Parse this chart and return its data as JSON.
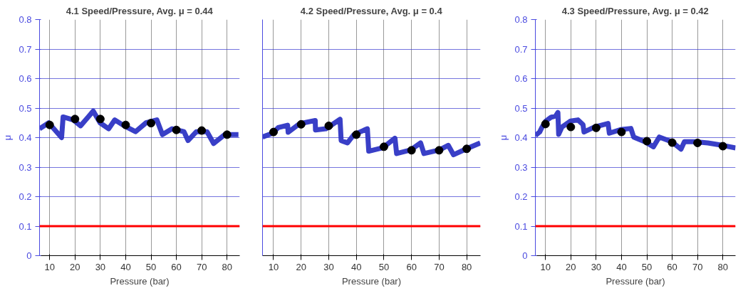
{
  "chart_data": [
    {
      "type": "line",
      "title": "4.1 Speed/Pressure, Avg. μ = 0.44",
      "xlabel": "Pressure (bar)",
      "ylabel": "μ",
      "xlim": [
        6,
        85
      ],
      "xticks": [
        10,
        20,
        30,
        40,
        50,
        60,
        70,
        80
      ],
      "ylim": [
        0,
        0.8
      ],
      "yticks": [
        0,
        0.1,
        0.2,
        0.3,
        0.4,
        0.5,
        0.6,
        0.7,
        0.8
      ],
      "grid": true,
      "series": [
        {
          "color": "#2e35c4",
          "x": [
            6.0,
            9.6,
            14.7,
            15.3,
            19.3,
            22.2,
            25.2,
            27.2,
            29.9,
            33.3,
            35.7,
            39.4,
            43.9,
            48.0,
            52.3,
            54.5,
            58.3,
            63.0,
            64.6,
            67.9,
            72.1,
            74.7,
            79.1,
            84.5
          ],
          "values": [
            0.43,
            0.45,
            0.4,
            0.47,
            0.46,
            0.44,
            0.47,
            0.49,
            0.45,
            0.43,
            0.46,
            0.44,
            0.42,
            0.45,
            0.46,
            0.41,
            0.43,
            0.42,
            0.39,
            0.42,
            0.42,
            0.38,
            0.41,
            0.41
          ]
        },
        {
          "type": "scatter",
          "color": "#000000",
          "marker": "circle",
          "x": [
            10,
            20,
            30,
            40,
            50,
            60,
            70,
            80
          ],
          "values": [
            0.443,
            0.463,
            0.463,
            0.443,
            0.449,
            0.426,
            0.424,
            0.41
          ]
        }
      ],
      "ref_lines": [
        {
          "axis": "y",
          "value": 0.1,
          "color": "#ff0000"
        }
      ]
    },
    {
      "type": "line",
      "title": "4.2 Speed/Pressure, Avg. μ = 0.4",
      "xlabel": "Pressure (bar)",
      "xlim": [
        6,
        85
      ],
      "xticks": [
        10,
        20,
        30,
        40,
        50,
        60,
        70,
        80
      ],
      "ylim": [
        0,
        0.8
      ],
      "yticks": [
        0,
        0.1,
        0.2,
        0.3,
        0.4,
        0.5,
        0.6,
        0.7,
        0.8
      ],
      "grid": true,
      "tick_labels": "x",
      "series": [
        {
          "color": "#2e35c4",
          "x": [
            6.0,
            9.7,
            11.7,
            15.1,
            15.3,
            19.4,
            25.1,
            25.2,
            29.0,
            34.1,
            34.5,
            36.8,
            39.1,
            44.0,
            44.5,
            49.7,
            54.0,
            54.6,
            59.7,
            63.3,
            64.5,
            70.1,
            73.3,
            75.2,
            79.9,
            84.9
          ],
          "values": [
            0.402,
            0.415,
            0.434,
            0.442,
            0.418,
            0.447,
            0.458,
            0.426,
            0.43,
            0.462,
            0.39,
            0.382,
            0.41,
            0.43,
            0.354,
            0.366,
            0.398,
            0.346,
            0.358,
            0.382,
            0.346,
            0.358,
            0.374,
            0.342,
            0.362,
            0.382
          ]
        },
        {
          "type": "scatter",
          "color": "#000000",
          "marker": "circle",
          "x": [
            10,
            20,
            30,
            40,
            50,
            60,
            70,
            80
          ],
          "values": [
            0.419,
            0.445,
            0.44,
            0.41,
            0.369,
            0.357,
            0.357,
            0.362
          ]
        }
      ],
      "ref_lines": [
        {
          "axis": "y",
          "value": 0.1,
          "color": "#ff0000"
        }
      ]
    },
    {
      "type": "line",
      "title": "4.3 Speed/Pressure, Avg. μ = 0.42",
      "xlabel": "Pressure (bar)",
      "ylabel": "μ",
      "xlim": [
        6,
        85
      ],
      "xticks": [
        10,
        20,
        30,
        40,
        50,
        60,
        70,
        80
      ],
      "ylim": [
        0,
        0.8
      ],
      "yticks": [
        0,
        0.1,
        0.2,
        0.3,
        0.4,
        0.5,
        0.6,
        0.7,
        0.8
      ],
      "grid": true,
      "series": [
        {
          "color": "#2e35c4",
          "x": [
            6.0,
            7.7,
            8.6,
            10.1,
            12.2,
            14.0,
            14.9,
            15.2,
            16.5,
            19.9,
            22.8,
            24.8,
            25.2,
            29.3,
            34.7,
            35.2,
            39.6,
            43.7,
            44.8,
            49.2,
            52.6,
            54.9,
            59.8,
            63.5,
            64.8,
            68.7,
            74.1,
            79.7,
            85.0
          ],
          "values": [
            0.407,
            0.419,
            0.435,
            0.456,
            0.469,
            0.473,
            0.485,
            0.411,
            0.436,
            0.456,
            0.46,
            0.444,
            0.419,
            0.436,
            0.448,
            0.415,
            0.427,
            0.431,
            0.402,
            0.386,
            0.369,
            0.402,
            0.386,
            0.361,
            0.386,
            0.386,
            0.382,
            0.374,
            0.365
          ]
        },
        {
          "type": "scatter",
          "color": "#000000",
          "marker": "circle",
          "x": [
            10,
            20,
            30,
            40,
            50,
            60,
            70,
            80
          ],
          "values": [
            0.446,
            0.436,
            0.433,
            0.419,
            0.388,
            0.383,
            0.382,
            0.371
          ]
        }
      ],
      "ref_lines": [
        {
          "axis": "y",
          "value": 0.1,
          "color": "#ff0000"
        }
      ]
    }
  ]
}
